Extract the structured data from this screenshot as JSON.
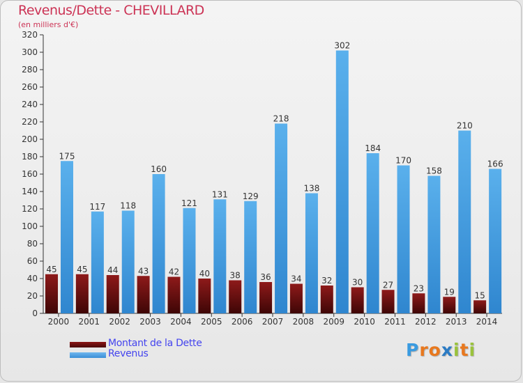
{
  "title": "Revenus/Dette - CHEVILLARD",
  "subtitle": "(en milliers d'€)",
  "logo": {
    "text": "Proxiti",
    "letters": [
      "P",
      "r",
      "o",
      "x",
      "i",
      "t",
      "i"
    ],
    "colors": [
      "#3a9be0",
      "#e8781e",
      "#e8781e",
      "#2b7bc4",
      "#9ac23c",
      "#e8781e",
      "#9ac23c"
    ]
  },
  "legend": [
    {
      "label": "Montant de la Dette",
      "color": "#6b1010"
    },
    {
      "label": "Revenus",
      "color": "#4fa3e6"
    }
  ],
  "chart_data": {
    "type": "bar",
    "categories": [
      "2000",
      "2001",
      "2002",
      "2003",
      "2004",
      "2005",
      "2006",
      "2007",
      "2008",
      "2009",
      "2010",
      "2011",
      "2012",
      "2013",
      "2014"
    ],
    "series": [
      {
        "name": "Montant de la Dette",
        "color": "#6b1010",
        "values": [
          45,
          45,
          44,
          43,
          42,
          40,
          38,
          36,
          34,
          32,
          30,
          27,
          23,
          19,
          15
        ]
      },
      {
        "name": "Revenus",
        "color": "#4fa3e6",
        "values": [
          175,
          117,
          118,
          160,
          121,
          131,
          129,
          218,
          138,
          302,
          184,
          170,
          158,
          210,
          166
        ]
      }
    ],
    "ylim": [
      0,
      320
    ],
    "yticks": [
      0,
      20,
      40,
      60,
      80,
      100,
      120,
      140,
      160,
      180,
      200,
      220,
      240,
      260,
      280,
      300,
      320
    ],
    "grid": false,
    "legend_position": "bottom-left"
  }
}
